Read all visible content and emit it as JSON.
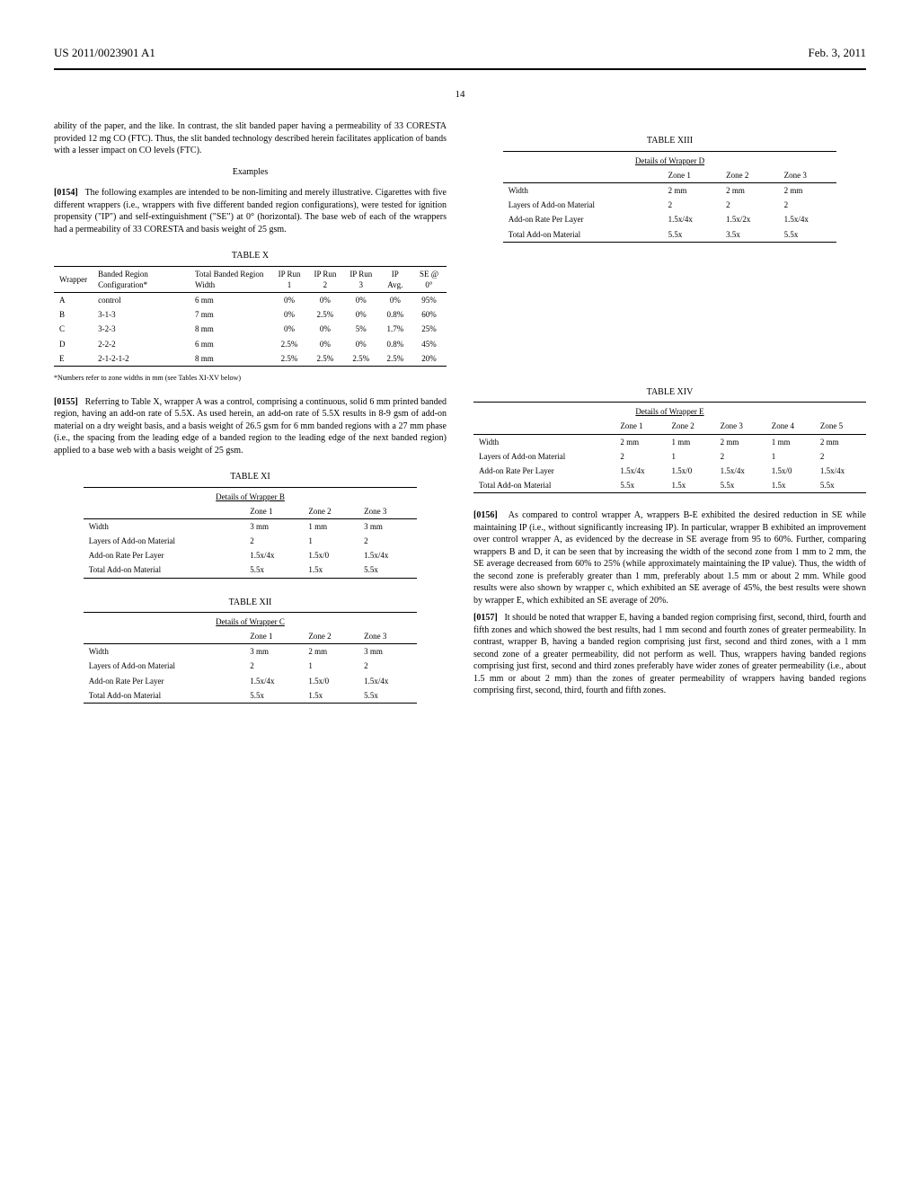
{
  "header": {
    "patent_no": "US 2011/0023901 A1",
    "date": "Feb. 3, 2011"
  },
  "page_number": "14",
  "col1": {
    "intro_text": "ability of the paper, and the like. In contrast, the slit banded paper having a permeability of 33 CORESTA provided 12 mg CO (FTC). Thus, the slit banded technology described herein facilitates application of bands with a lesser impact on CO levels (FTC).",
    "examples_heading": "Examples",
    "para154_num": "[0154]",
    "para154_text": "The following examples are intended to be non-limiting and merely illustrative. Cigarettes with five different wrappers (i.e., wrappers with five different banded region configurations), were tested for ignition propensity (\"IP\") and self-extinguishment (\"SE\") at 0° (horizontal). The base web of each of the wrappers had a permeability of 33 CORESTA and basis weight of 25 gsm.",
    "tableX": {
      "title": "TABLE X",
      "columns": [
        "Wrapper",
        "Banded Region Configuration*",
        "Total Banded Region Width",
        "IP Run 1",
        "IP Run 2",
        "IP Run 3",
        "IP Avg.",
        "SE @ 0°"
      ],
      "rows": [
        [
          "A",
          "control",
          "6 mm",
          "0%",
          "0%",
          "0%",
          "0%",
          "95%"
        ],
        [
          "B",
          "3-1-3",
          "7 mm",
          "0%",
          "2.5%",
          "0%",
          "0.8%",
          "60%"
        ],
        [
          "C",
          "3-2-3",
          "8 mm",
          "0%",
          "0%",
          "5%",
          "1.7%",
          "25%"
        ],
        [
          "D",
          "2-2-2",
          "6 mm",
          "2.5%",
          "0%",
          "0%",
          "0.8%",
          "45%"
        ],
        [
          "E",
          "2-1-2-1-2",
          "8 mm",
          "2.5%",
          "2.5%",
          "2.5%",
          "2.5%",
          "20%"
        ]
      ],
      "footnote": "*Numbers refer to zone widths in mm (see Tables XI-XV below)"
    },
    "para155_num": "[0155]",
    "para155_text": "Referring to Table X, wrapper A was a control, comprising a continuous, solid 6 mm printed banded region, having an add-on rate of 5.5X. As used herein, an add-on rate of 5.5X results in 8-9 gsm of add-on material on a dry weight basis, and a basis weight of 26.5 gsm for 6 mm banded regions with a 27 mm phase (i.e., the spacing from the leading edge of a banded region to the leading edge of the next banded region) applied to a base web with a basis weight of 25 gsm.",
    "tableXI": {
      "title": "TABLE XI",
      "subtitle": "Details of Wrapper B",
      "zone_headers": [
        "",
        "Zone 1",
        "Zone 2",
        "Zone 3"
      ],
      "rows": [
        [
          "Width",
          "3 mm",
          "1 mm",
          "3 mm"
        ],
        [
          "Layers of Add-on Material",
          "2",
          "1",
          "2"
        ],
        [
          "Add-on Rate Per Layer",
          "1.5x/4x",
          "1.5x/0",
          "1.5x/4x"
        ],
        [
          "Total Add-on Material",
          "5.5x",
          "1.5x",
          "5.5x"
        ]
      ]
    },
    "tableXII": {
      "title": "TABLE XII",
      "subtitle": "Details of Wrapper C",
      "zone_headers": [
        "",
        "Zone 1",
        "Zone 2",
        "Zone 3"
      ],
      "rows": [
        [
          "Width",
          "3 mm",
          "2 mm",
          "3 mm"
        ],
        [
          "Layers of Add-on Material",
          "2",
          "1",
          "2"
        ],
        [
          "Add-on Rate Per Layer",
          "1.5x/4x",
          "1.5x/0",
          "1.5x/4x"
        ],
        [
          "Total Add-on Material",
          "5.5x",
          "1.5x",
          "5.5x"
        ]
      ]
    }
  },
  "col2": {
    "tableXIII": {
      "title": "TABLE XIII",
      "subtitle": "Details of Wrapper D",
      "zone_headers": [
        "",
        "Zone 1",
        "Zone 2",
        "Zone 3"
      ],
      "rows": [
        [
          "Width",
          "2 mm",
          "2 mm",
          "2 mm"
        ],
        [
          "Layers of Add-on Material",
          "2",
          "2",
          "2"
        ],
        [
          "Add-on Rate Per Layer",
          "1.5x/4x",
          "1.5x/2x",
          "1.5x/4x"
        ],
        [
          "Total Add-on Material",
          "5.5x",
          "3.5x",
          "5.5x"
        ]
      ]
    },
    "tableXIV": {
      "title": "TABLE XIV",
      "subtitle": "Details of Wrapper E",
      "zone_headers": [
        "",
        "Zone 1",
        "Zone 2",
        "Zone 3",
        "Zone 4",
        "Zone 5"
      ],
      "rows": [
        [
          "Width",
          "2 mm",
          "1 mm",
          "2 mm",
          "1 mm",
          "2 mm"
        ],
        [
          "Layers of Add-on Material",
          "2",
          "1",
          "2",
          "1",
          "2"
        ],
        [
          "Add-on Rate Per Layer",
          "1.5x/4x",
          "1.5x/0",
          "1.5x/4x",
          "1.5x/0",
          "1.5x/4x"
        ],
        [
          "Total Add-on Material",
          "5.5x",
          "1.5x",
          "5.5x",
          "1.5x",
          "5.5x"
        ]
      ]
    },
    "para156_num": "[0156]",
    "para156_text": "As compared to control wrapper A, wrappers B-E exhibited the desired reduction in SE while maintaining IP (i.e., without significantly increasing IP). In particular, wrapper B exhibited an improvement over control wrapper A, as evidenced by the decrease in SE average from 95 to 60%. Further, comparing wrappers B and D, it can be seen that by increasing the width of the second zone from 1 mm to 2 mm, the SE average decreased from 60% to 25% (while approximately maintaining the IP value). Thus, the width of the second zone is preferably greater than 1 mm, preferably about 1.5 mm or about 2 mm. While good results were also shown by wrapper c, which exhibited an SE average of 45%, the best results were shown by wrapper E, which exhibited an SE average of 20%.",
    "para157_num": "[0157]",
    "para157_text": "It should be noted that wrapper E, having a banded region comprising first, second, third, fourth and fifth zones and which showed the best results, had 1 mm second and fourth zones of greater permeability. In contrast, wrapper B, having a banded region comprising just first, second and third zones, with a 1 mm second zone of a greater permeability, did not perform as well. Thus, wrappers having banded regions comprising just first, second and third zones preferably have wider zones of greater permeability (i.e., about 1.5 mm or about 2 mm) than the zones of greater permeability of wrappers having banded regions comprising first, second, third, fourth and fifth zones."
  }
}
